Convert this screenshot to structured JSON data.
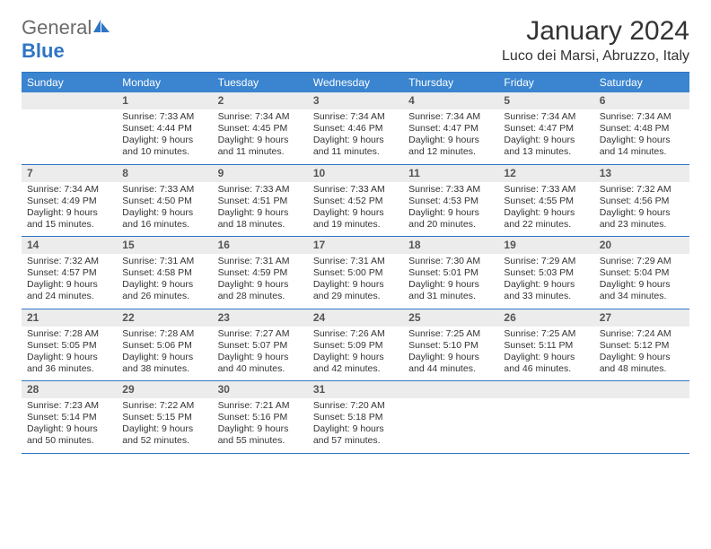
{
  "logo": {
    "text_gray": "General",
    "text_blue": "Blue"
  },
  "title": "January 2024",
  "location": "Luco dei Marsi, Abruzzo, Italy",
  "colors": {
    "header_bg": "#3a84d0",
    "header_text": "#ffffff",
    "daynum_bg": "#ececec",
    "border": "#2e75c5",
    "logo_gray": "#6b6b6b",
    "logo_blue": "#2e75c5"
  },
  "weekdays": [
    "Sunday",
    "Monday",
    "Tuesday",
    "Wednesday",
    "Thursday",
    "Friday",
    "Saturday"
  ],
  "weeks": [
    [
      {
        "day": "",
        "sunrise": "",
        "sunset": "",
        "daylight": ""
      },
      {
        "day": "1",
        "sunrise": "Sunrise: 7:33 AM",
        "sunset": "Sunset: 4:44 PM",
        "daylight": "Daylight: 9 hours and 10 minutes."
      },
      {
        "day": "2",
        "sunrise": "Sunrise: 7:34 AM",
        "sunset": "Sunset: 4:45 PM",
        "daylight": "Daylight: 9 hours and 11 minutes."
      },
      {
        "day": "3",
        "sunrise": "Sunrise: 7:34 AM",
        "sunset": "Sunset: 4:46 PM",
        "daylight": "Daylight: 9 hours and 11 minutes."
      },
      {
        "day": "4",
        "sunrise": "Sunrise: 7:34 AM",
        "sunset": "Sunset: 4:47 PM",
        "daylight": "Daylight: 9 hours and 12 minutes."
      },
      {
        "day": "5",
        "sunrise": "Sunrise: 7:34 AM",
        "sunset": "Sunset: 4:47 PM",
        "daylight": "Daylight: 9 hours and 13 minutes."
      },
      {
        "day": "6",
        "sunrise": "Sunrise: 7:34 AM",
        "sunset": "Sunset: 4:48 PM",
        "daylight": "Daylight: 9 hours and 14 minutes."
      }
    ],
    [
      {
        "day": "7",
        "sunrise": "Sunrise: 7:34 AM",
        "sunset": "Sunset: 4:49 PM",
        "daylight": "Daylight: 9 hours and 15 minutes."
      },
      {
        "day": "8",
        "sunrise": "Sunrise: 7:33 AM",
        "sunset": "Sunset: 4:50 PM",
        "daylight": "Daylight: 9 hours and 16 minutes."
      },
      {
        "day": "9",
        "sunrise": "Sunrise: 7:33 AM",
        "sunset": "Sunset: 4:51 PM",
        "daylight": "Daylight: 9 hours and 18 minutes."
      },
      {
        "day": "10",
        "sunrise": "Sunrise: 7:33 AM",
        "sunset": "Sunset: 4:52 PM",
        "daylight": "Daylight: 9 hours and 19 minutes."
      },
      {
        "day": "11",
        "sunrise": "Sunrise: 7:33 AM",
        "sunset": "Sunset: 4:53 PM",
        "daylight": "Daylight: 9 hours and 20 minutes."
      },
      {
        "day": "12",
        "sunrise": "Sunrise: 7:33 AM",
        "sunset": "Sunset: 4:55 PM",
        "daylight": "Daylight: 9 hours and 22 minutes."
      },
      {
        "day": "13",
        "sunrise": "Sunrise: 7:32 AM",
        "sunset": "Sunset: 4:56 PM",
        "daylight": "Daylight: 9 hours and 23 minutes."
      }
    ],
    [
      {
        "day": "14",
        "sunrise": "Sunrise: 7:32 AM",
        "sunset": "Sunset: 4:57 PM",
        "daylight": "Daylight: 9 hours and 24 minutes."
      },
      {
        "day": "15",
        "sunrise": "Sunrise: 7:31 AM",
        "sunset": "Sunset: 4:58 PM",
        "daylight": "Daylight: 9 hours and 26 minutes."
      },
      {
        "day": "16",
        "sunrise": "Sunrise: 7:31 AM",
        "sunset": "Sunset: 4:59 PM",
        "daylight": "Daylight: 9 hours and 28 minutes."
      },
      {
        "day": "17",
        "sunrise": "Sunrise: 7:31 AM",
        "sunset": "Sunset: 5:00 PM",
        "daylight": "Daylight: 9 hours and 29 minutes."
      },
      {
        "day": "18",
        "sunrise": "Sunrise: 7:30 AM",
        "sunset": "Sunset: 5:01 PM",
        "daylight": "Daylight: 9 hours and 31 minutes."
      },
      {
        "day": "19",
        "sunrise": "Sunrise: 7:29 AM",
        "sunset": "Sunset: 5:03 PM",
        "daylight": "Daylight: 9 hours and 33 minutes."
      },
      {
        "day": "20",
        "sunrise": "Sunrise: 7:29 AM",
        "sunset": "Sunset: 5:04 PM",
        "daylight": "Daylight: 9 hours and 34 minutes."
      }
    ],
    [
      {
        "day": "21",
        "sunrise": "Sunrise: 7:28 AM",
        "sunset": "Sunset: 5:05 PM",
        "daylight": "Daylight: 9 hours and 36 minutes."
      },
      {
        "day": "22",
        "sunrise": "Sunrise: 7:28 AM",
        "sunset": "Sunset: 5:06 PM",
        "daylight": "Daylight: 9 hours and 38 minutes."
      },
      {
        "day": "23",
        "sunrise": "Sunrise: 7:27 AM",
        "sunset": "Sunset: 5:07 PM",
        "daylight": "Daylight: 9 hours and 40 minutes."
      },
      {
        "day": "24",
        "sunrise": "Sunrise: 7:26 AM",
        "sunset": "Sunset: 5:09 PM",
        "daylight": "Daylight: 9 hours and 42 minutes."
      },
      {
        "day": "25",
        "sunrise": "Sunrise: 7:25 AM",
        "sunset": "Sunset: 5:10 PM",
        "daylight": "Daylight: 9 hours and 44 minutes."
      },
      {
        "day": "26",
        "sunrise": "Sunrise: 7:25 AM",
        "sunset": "Sunset: 5:11 PM",
        "daylight": "Daylight: 9 hours and 46 minutes."
      },
      {
        "day": "27",
        "sunrise": "Sunrise: 7:24 AM",
        "sunset": "Sunset: 5:12 PM",
        "daylight": "Daylight: 9 hours and 48 minutes."
      }
    ],
    [
      {
        "day": "28",
        "sunrise": "Sunrise: 7:23 AM",
        "sunset": "Sunset: 5:14 PM",
        "daylight": "Daylight: 9 hours and 50 minutes."
      },
      {
        "day": "29",
        "sunrise": "Sunrise: 7:22 AM",
        "sunset": "Sunset: 5:15 PM",
        "daylight": "Daylight: 9 hours and 52 minutes."
      },
      {
        "day": "30",
        "sunrise": "Sunrise: 7:21 AM",
        "sunset": "Sunset: 5:16 PM",
        "daylight": "Daylight: 9 hours and 55 minutes."
      },
      {
        "day": "31",
        "sunrise": "Sunrise: 7:20 AM",
        "sunset": "Sunset: 5:18 PM",
        "daylight": "Daylight: 9 hours and 57 minutes."
      },
      {
        "day": "",
        "sunrise": "",
        "sunset": "",
        "daylight": ""
      },
      {
        "day": "",
        "sunrise": "",
        "sunset": "",
        "daylight": ""
      },
      {
        "day": "",
        "sunrise": "",
        "sunset": "",
        "daylight": ""
      }
    ]
  ]
}
